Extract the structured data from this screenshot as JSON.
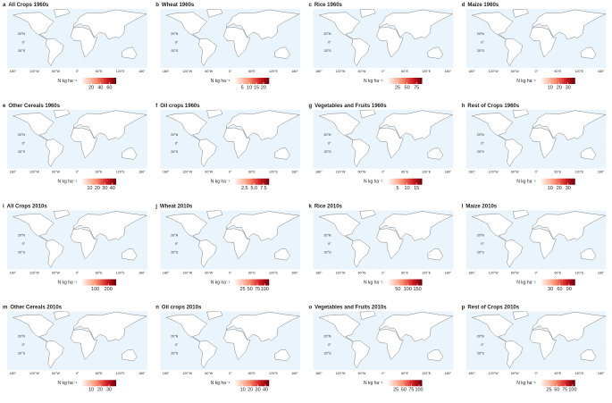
{
  "unit_label": "N kg ha⁻¹",
  "lat_labels": [
    "20°N",
    "0°",
    "20°S"
  ],
  "lon_labels": [
    "180°",
    "120°W",
    "60°W",
    "0°",
    "60°E",
    "120°E",
    "180°"
  ],
  "panels": [
    {
      "letter": "a",
      "title": "All Crops 1960s",
      "range": [
        0,
        75
      ],
      "ticks": [
        20,
        40,
        60
      ]
    },
    {
      "letter": "b",
      "title": "Wheat 1960s",
      "range": [
        0,
        24
      ],
      "ticks": [
        5,
        10,
        15,
        20
      ]
    },
    {
      "letter": "c",
      "title": "Rice 1960s",
      "range": [
        0,
        90
      ],
      "ticks": [
        25,
        50,
        75
      ]
    },
    {
      "letter": "d",
      "title": "Maize 1960s",
      "range": [
        0,
        38
      ],
      "ticks": [
        10,
        20,
        30
      ]
    },
    {
      "letter": "e",
      "title": "Other Cereals 1960s",
      "range": [
        0,
        45
      ],
      "ticks": [
        10,
        20,
        30,
        40
      ]
    },
    {
      "letter": "f",
      "title": "Oil crops 1960s",
      "range": [
        0,
        9
      ],
      "ticks": [
        2.5,
        {
          "value": 5,
          "label": "5.0"
        },
        7.5
      ]
    },
    {
      "letter": "g",
      "title": "Vegetables and Fruits 1960s",
      "range": [
        0,
        18
      ],
      "ticks": [
        5,
        10,
        15
      ]
    },
    {
      "letter": "h",
      "title": "Rest of Crops 1960s",
      "range": [
        0,
        38
      ],
      "ticks": [
        10,
        20,
        30
      ]
    },
    {
      "letter": "i",
      "title": "All Crops 2010s",
      "range": [
        0,
        260
      ],
      "ticks": [
        100,
        200
      ]
    },
    {
      "letter": "j",
      "title": "Wheat 2010s",
      "range": [
        0,
        115
      ],
      "ticks": [
        25,
        50,
        75,
        100
      ]
    },
    {
      "letter": "k",
      "title": "Rice 2010s",
      "range": [
        0,
        175
      ],
      "ticks": [
        50,
        100,
        150
      ]
    },
    {
      "letter": "l",
      "title": "Maize 2010s",
      "range": [
        0,
        110
      ],
      "ticks": [
        30,
        60,
        90
      ]
    },
    {
      "letter": "m",
      "title": "Other Cereals 2010s",
      "range": [
        0,
        38
      ],
      "ticks": [
        10,
        20,
        30
      ]
    },
    {
      "letter": "n",
      "title": "Oil crops 2010s",
      "range": [
        0,
        45
      ],
      "ticks": [
        10,
        20,
        30,
        40
      ]
    },
    {
      "letter": "o",
      "title": "Vegetables and Fruits 2010s",
      "range": [
        0,
        110
      ],
      "ticks": [
        25,
        50,
        75,
        100
      ]
    },
    {
      "letter": "p",
      "title": "Rest of Crops 2010s",
      "range": [
        0,
        108
      ],
      "ticks": [
        25,
        50,
        75,
        100
      ]
    }
  ]
}
